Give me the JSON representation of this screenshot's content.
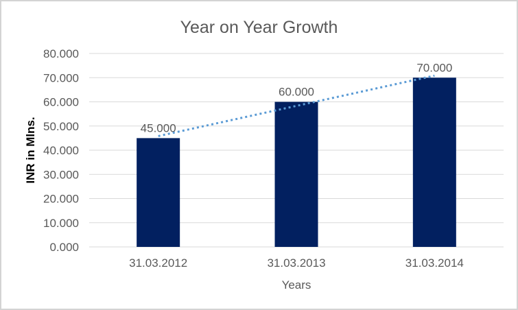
{
  "chart_data": {
    "type": "bar",
    "title": "Year on Year Growth",
    "xlabel": "Years",
    "ylabel": "INR in Mlns.",
    "categories": [
      "31.03.2012",
      "31.03.2013",
      "31.03.2014"
    ],
    "values": [
      45,
      60,
      70
    ],
    "data_labels": [
      "45.000",
      "60.000",
      "70.000"
    ],
    "ylim": [
      0,
      80
    ],
    "ytick_step": 10,
    "ytick_labels": [
      "0.000",
      "10.000",
      "20.000",
      "30.000",
      "40.000",
      "50.000",
      "60.000",
      "70.000",
      "80.000"
    ],
    "grid": true,
    "legend": "none",
    "trendline": {
      "type": "linear",
      "style": "dotted"
    },
    "colors": {
      "bar": "#022060",
      "trendline": "#5B9BD5",
      "gridline": "#D9D9D9",
      "axis_text": "#595959",
      "data_label_text": "#595959",
      "title_text": "#595959",
      "ylabel_text": "#000000",
      "frame_border": "#D3D3D3",
      "background": "#FFFFFF"
    }
  }
}
